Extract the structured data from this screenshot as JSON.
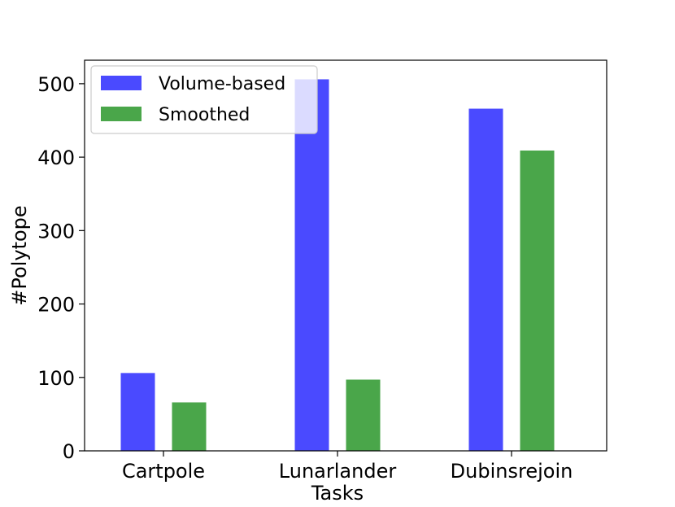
{
  "chart_data": {
    "type": "bar",
    "title": "",
    "xlabel": "Tasks",
    "ylabel": "#Polytope",
    "categories": [
      "Cartpole",
      "Lunarlander",
      "Dubinsrejoin"
    ],
    "series": [
      {
        "name": "Volume-based",
        "values": [
          106,
          506,
          466
        ],
        "color": "#4a4aff"
      },
      {
        "name": "Smoothed",
        "values": [
          66,
          97,
          409
        ],
        "color": "#4aa64a"
      }
    ],
    "ylim": [
      0,
      532
    ],
    "yticks": [
      0,
      100,
      200,
      300,
      400,
      500
    ],
    "grid": false,
    "legend_position": "top-left"
  }
}
